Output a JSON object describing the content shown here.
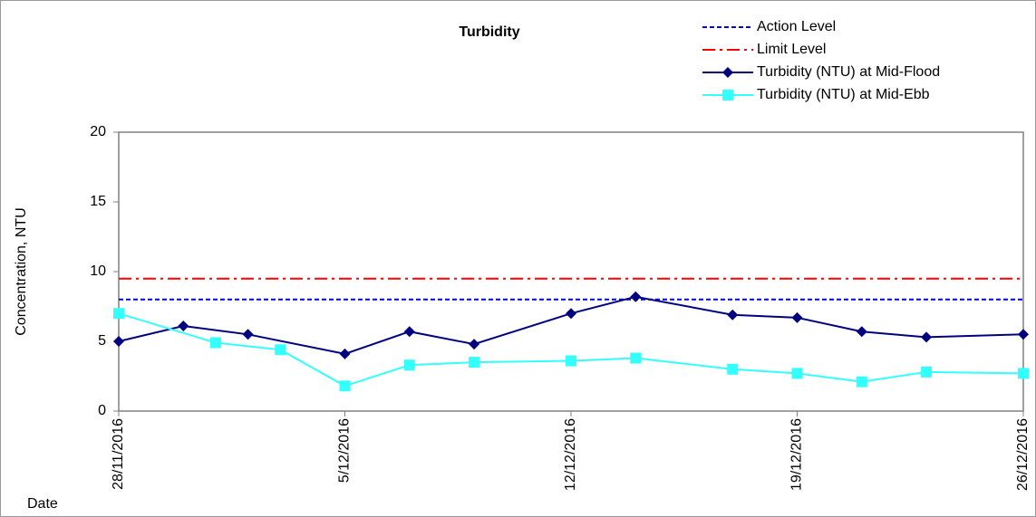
{
  "chart_data": {
    "type": "line",
    "title": "Turbidity",
    "y_label": "Concentration, NTU",
    "x_label": "Date",
    "xlim": [
      "2016-11-28",
      "2016-12-26"
    ],
    "xticks": [
      {
        "value": "2016-11-28",
        "label": "28/11/2016"
      },
      {
        "value": "2016-12-05",
        "label": "5/12/2016"
      },
      {
        "value": "2016-12-12",
        "label": "12/12/2016"
      },
      {
        "value": "2016-12-19",
        "label": "19/12/2016"
      },
      {
        "value": "2016-12-26",
        "label": "26/12/2016"
      }
    ],
    "ylim": [
      0,
      20
    ],
    "yticks": [
      0,
      5,
      10,
      15,
      20
    ],
    "grid": false,
    "legend": "top-right",
    "series": [
      {
        "name": "Action Level",
        "color": "#0000ff",
        "dash": "dash",
        "marker": "none",
        "x": [
          "2016-11-28",
          "2016-12-26"
        ],
        "values": [
          8,
          8
        ]
      },
      {
        "name": "Limit Level",
        "color": "#ff0000",
        "dash": "dashdot",
        "marker": "none",
        "x": [
          "2016-11-28",
          "2016-12-26"
        ],
        "values": [
          9.5,
          9.5
        ]
      },
      {
        "name": "Turbidity (NTU) at Mid-Flood",
        "color": "#000080",
        "dash": "solid",
        "marker": "diamond",
        "x": [
          "2016-11-28",
          "2016-11-30",
          "2016-12-02",
          "2016-12-05",
          "2016-12-07",
          "2016-12-09",
          "2016-12-12",
          "2016-12-14",
          "2016-12-17",
          "2016-12-19",
          "2016-12-21",
          "2016-12-23",
          "2016-12-26"
        ],
        "values": [
          5.0,
          6.1,
          5.5,
          4.1,
          5.7,
          4.8,
          7.0,
          8.2,
          6.9,
          6.7,
          5.7,
          5.3,
          5.5
        ]
      },
      {
        "name": "Turbidity (NTU) at Mid-Ebb",
        "color": "#33ffff",
        "dash": "solid",
        "marker": "square",
        "x": [
          "2016-11-28",
          "2016-12-01",
          "2016-12-03",
          "2016-12-05",
          "2016-12-07",
          "2016-12-09",
          "2016-12-12",
          "2016-12-14",
          "2016-12-17",
          "2016-12-19",
          "2016-12-21",
          "2016-12-23",
          "2016-12-26"
        ],
        "values": [
          7.0,
          4.9,
          4.4,
          1.8,
          3.3,
          3.5,
          3.6,
          3.8,
          3.0,
          2.7,
          2.1,
          2.8,
          2.7
        ]
      }
    ]
  }
}
